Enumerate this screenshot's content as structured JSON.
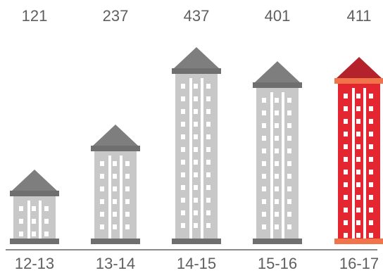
{
  "chart_data": {
    "type": "bar",
    "categories": [
      "12-13",
      "13-14",
      "14-15",
      "15-16",
      "16-17"
    ],
    "values": [
      121,
      237,
      437,
      401,
      411
    ],
    "title": "",
    "xlabel": "",
    "ylabel": "",
    "ylim": [
      0,
      437
    ],
    "highlight_index": 4,
    "colors": {
      "building_body": "#c8c8c8",
      "building_trim": "#6f6f6f",
      "roof": "#7e7e7e",
      "windows": "#ffffff",
      "highlight_body": "#e3262f",
      "highlight_roof": "#b4232b",
      "highlight_trim": "#f0734a",
      "axis_line": "#8a8a8a",
      "text": "#5f5f5f"
    }
  }
}
